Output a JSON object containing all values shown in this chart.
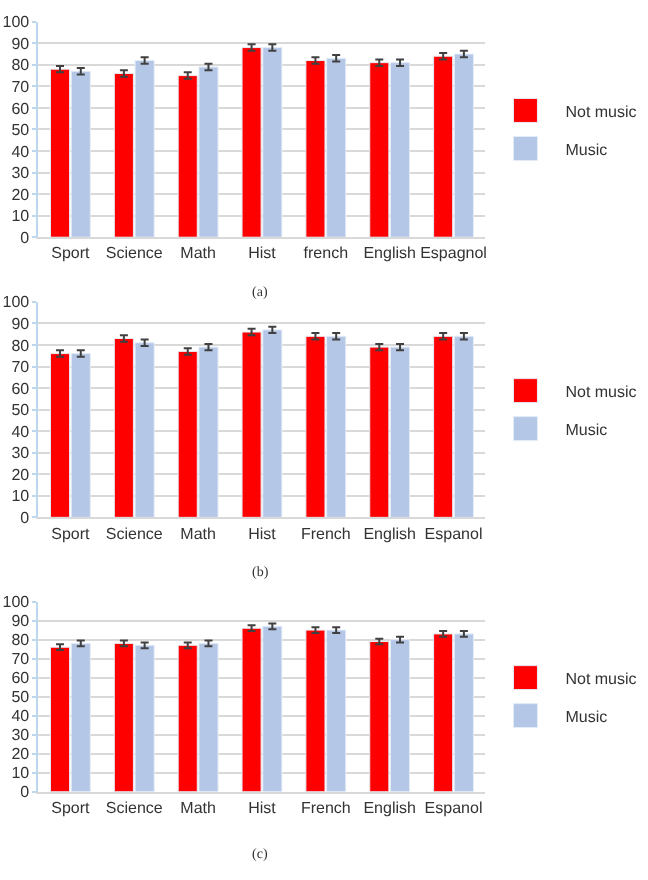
{
  "chart_data": [
    {
      "type": "bar",
      "annotations": [
        "(a)"
      ],
      "categories": [
        "Sport",
        "Science",
        "Math",
        "Hist",
        "french",
        "English",
        "Espagnol"
      ],
      "ylim": [
        0,
        100
      ],
      "yticks": [
        0,
        10,
        20,
        30,
        40,
        50,
        60,
        70,
        80,
        90,
        100
      ],
      "grid": "y",
      "legend": "right",
      "series": [
        {
          "name": "Not music",
          "color": "#ff0000",
          "values": [
            78,
            76,
            75,
            88,
            82,
            81,
            84
          ],
          "errors": [
            1.5,
            1.5,
            1.5,
            1.5,
            1.5,
            1.5,
            1.5
          ]
        },
        {
          "name": "Music",
          "color": "#b4c7e7",
          "values": [
            77,
            82,
            79,
            88,
            83,
            81,
            85
          ],
          "errors": [
            1.5,
            1.5,
            1.5,
            1.5,
            1.5,
            1.5,
            1.5
          ]
        }
      ]
    },
    {
      "type": "bar",
      "annotations": [
        "(b)"
      ],
      "categories": [
        "Sport",
        "Science",
        "Math",
        "Hist",
        "French",
        "English",
        "Espanol"
      ],
      "ylim": [
        0,
        100
      ],
      "yticks": [
        0,
        10,
        20,
        30,
        40,
        50,
        60,
        70,
        80,
        90,
        100
      ],
      "grid": "y",
      "legend": "right",
      "series": [
        {
          "name": "Not music",
          "color": "#ff0000",
          "values": [
            76,
            83,
            77,
            86,
            84,
            79,
            84
          ],
          "errors": [
            1.5,
            1.5,
            1.5,
            1.5,
            1.5,
            1.5,
            1.5
          ]
        },
        {
          "name": "Music",
          "color": "#b4c7e7",
          "values": [
            76,
            81,
            79,
            87,
            84,
            79,
            84
          ],
          "errors": [
            1.5,
            1.5,
            1.5,
            1.5,
            1.5,
            1.5,
            1.5
          ]
        }
      ]
    },
    {
      "type": "bar",
      "annotations": [
        "(c)"
      ],
      "categories": [
        "Sport",
        "Science",
        "Math",
        "Hist",
        "French",
        "English",
        "Espanol"
      ],
      "ylim": [
        0,
        100
      ],
      "yticks": [
        0,
        10,
        20,
        30,
        40,
        50,
        60,
        70,
        80,
        90,
        100
      ],
      "grid": "y",
      "legend": "right",
      "series": [
        {
          "name": "Not music",
          "color": "#ff0000",
          "values": [
            76,
            78,
            77,
            86,
            85,
            79,
            83
          ],
          "errors": [
            1.5,
            1.5,
            1.5,
            1.5,
            1.5,
            1.5,
            1.5
          ]
        },
        {
          "name": "Music",
          "color": "#b4c7e7",
          "values": [
            78,
            77,
            78,
            87,
            85,
            80,
            83
          ],
          "errors": [
            1.5,
            1.5,
            1.5,
            1.5,
            1.5,
            1.5,
            1.5
          ]
        }
      ]
    }
  ]
}
